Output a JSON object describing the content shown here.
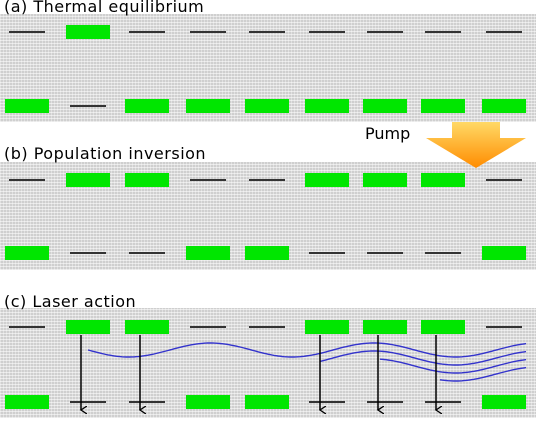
{
  "panels": [
    {
      "label": "(a) Thermal equilibrium",
      "upper": [
        false,
        true,
        false,
        false,
        false,
        false,
        false,
        false,
        false
      ],
      "lower": [
        true,
        false,
        true,
        true,
        true,
        true,
        true,
        true,
        true
      ],
      "transitions": []
    },
    {
      "label": "(b) Population inversion",
      "upper": [
        false,
        true,
        true,
        false,
        false,
        true,
        true,
        true,
        false
      ],
      "lower": [
        true,
        false,
        false,
        true,
        true,
        false,
        false,
        false,
        true
      ],
      "transitions": []
    },
    {
      "label": "(c) Laser action",
      "upper": [
        false,
        true,
        true,
        false,
        false,
        true,
        true,
        true,
        false
      ],
      "lower": [
        true,
        false,
        false,
        true,
        true,
        false,
        false,
        false,
        true
      ],
      "transitions": [
        1,
        2,
        5,
        6,
        7
      ]
    }
  ],
  "pump": {
    "label": "Pump"
  },
  "colors": {
    "atom": "#00e600",
    "level": "#333333",
    "wave": "#3333cc",
    "pump_light": "#ffd966",
    "pump_dark": "#ff8c00"
  }
}
